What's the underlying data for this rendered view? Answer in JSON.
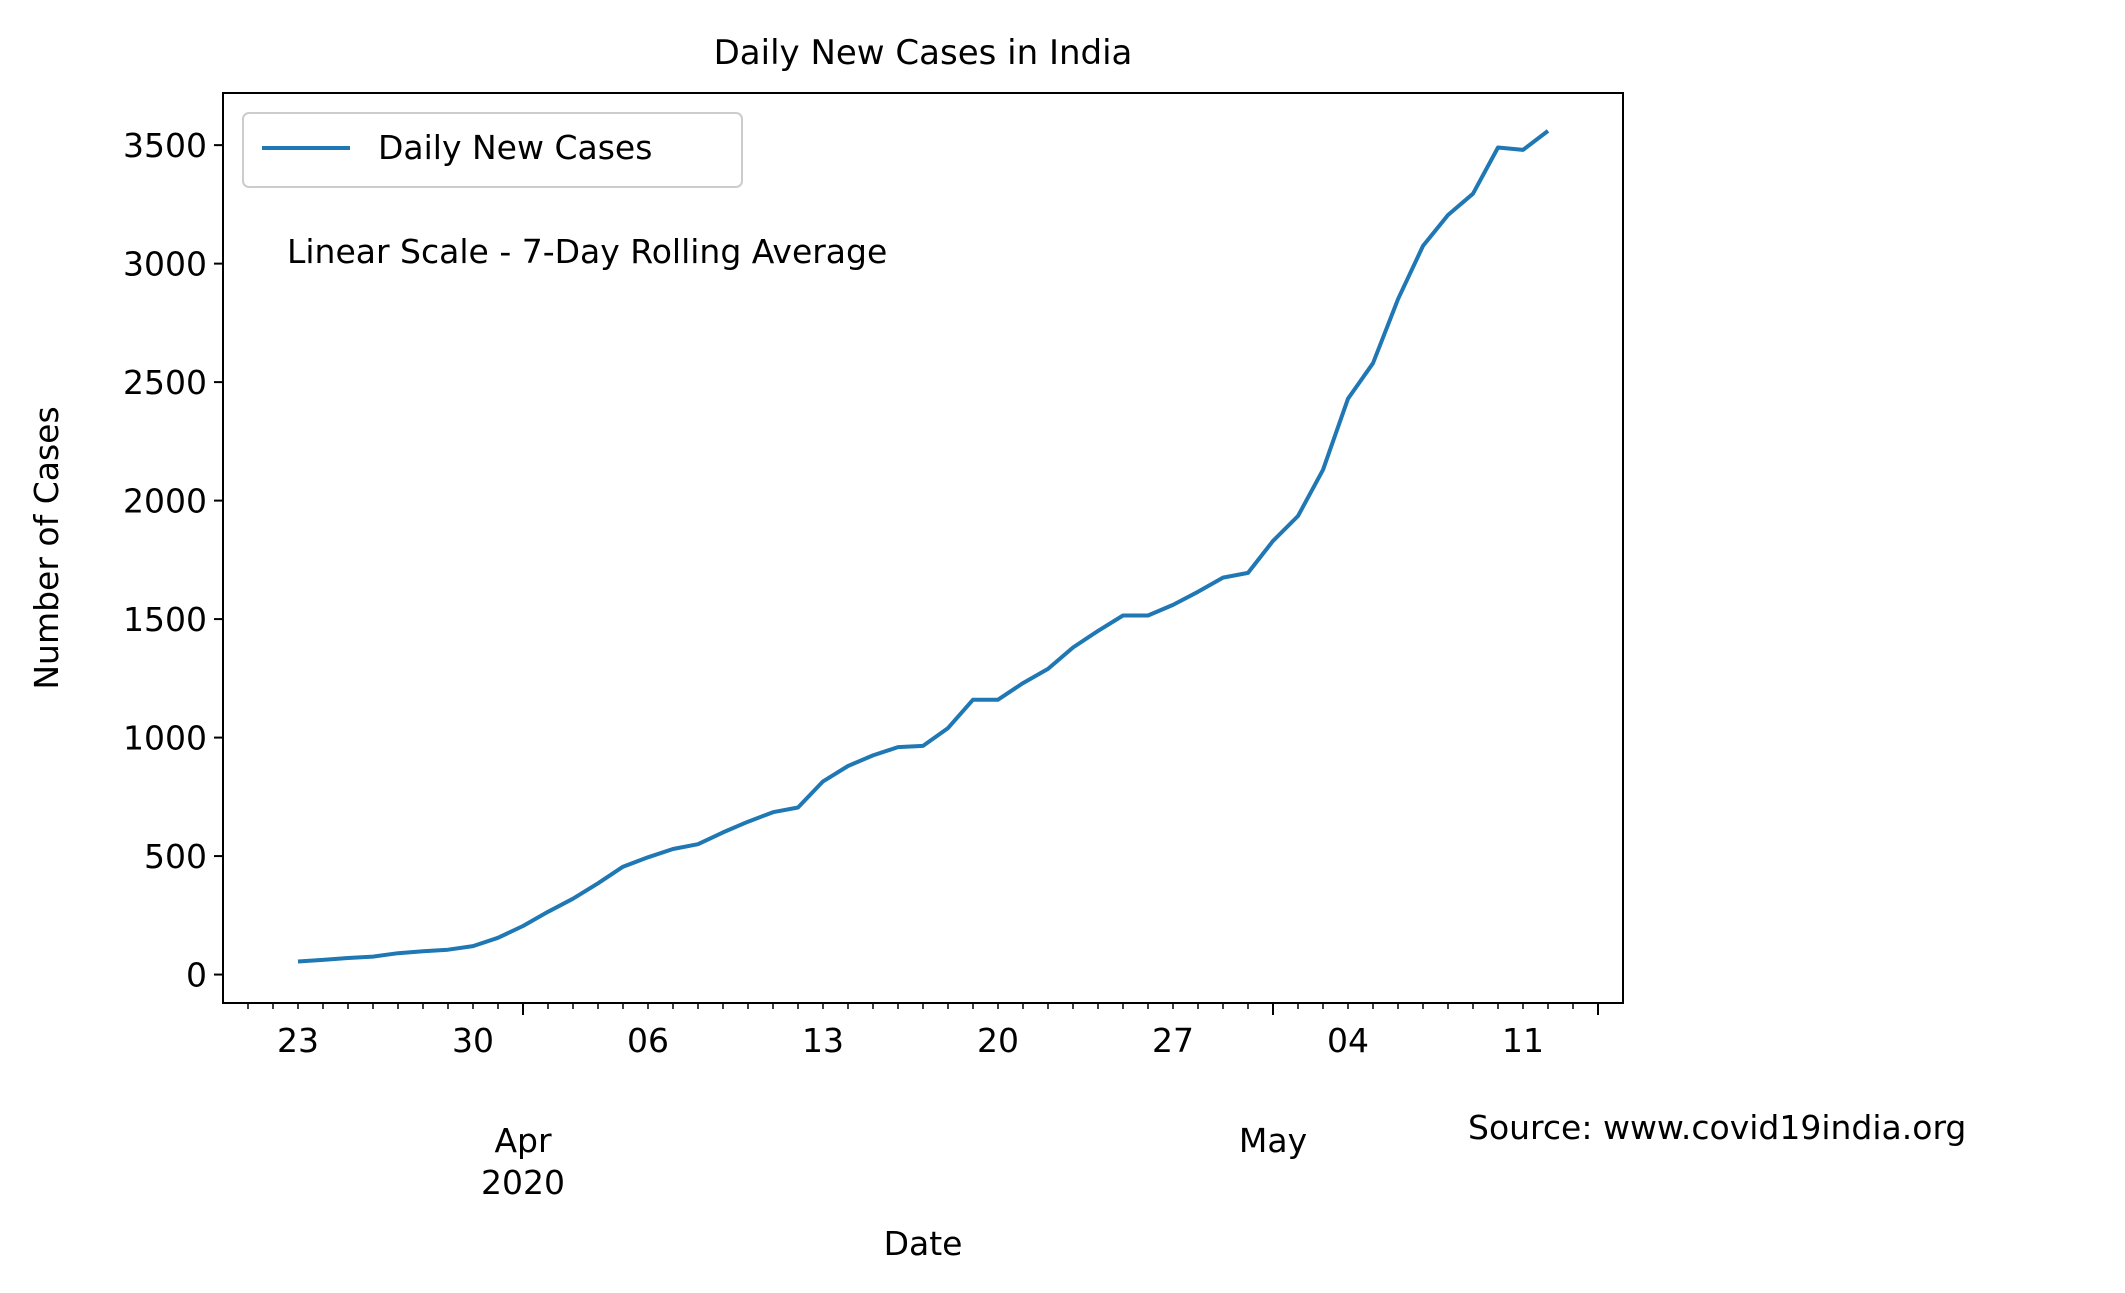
{
  "chart_data": {
    "type": "line",
    "title": "Daily New Cases in India",
    "xlabel": "Date",
    "ylabel": "Number of Cases",
    "annotation": "Linear Scale - 7-Day Rolling Average",
    "source": "Source: www.covid19india.org",
    "legend": {
      "placement": "top-left",
      "label": "Daily New Cases"
    },
    "colors": {
      "line": "#1f77b4",
      "axes": "#000000",
      "legend_border": "#cccccc"
    },
    "ylim": [
      -120,
      3720
    ],
    "xlim": [
      "2020-03-20",
      "2020-05-15"
    ],
    "y_ticks": [
      0,
      500,
      1000,
      1500,
      2000,
      2500,
      3000,
      3500
    ],
    "x_tick_labels": [
      {
        "date": "2020-03-23",
        "label": "23"
      },
      {
        "date": "2020-03-30",
        "label": "30"
      },
      {
        "date": "2020-04-06",
        "label": "06"
      },
      {
        "date": "2020-04-13",
        "label": "13"
      },
      {
        "date": "2020-04-20",
        "label": "20"
      },
      {
        "date": "2020-04-27",
        "label": "27"
      },
      {
        "date": "2020-05-04",
        "label": "04"
      },
      {
        "date": "2020-05-11",
        "label": "11"
      }
    ],
    "month_labels": [
      {
        "date": "2020-04-01",
        "label": "Apr",
        "year": "2020"
      },
      {
        "date": "2020-05-01",
        "label": "May",
        "year": ""
      }
    ],
    "series": [
      {
        "name": "Daily New Cases",
        "x": [
          "2020-03-23",
          "2020-03-24",
          "2020-03-25",
          "2020-03-26",
          "2020-03-27",
          "2020-03-28",
          "2020-03-29",
          "2020-03-30",
          "2020-03-31",
          "2020-04-01",
          "2020-04-02",
          "2020-04-03",
          "2020-04-04",
          "2020-04-05",
          "2020-04-06",
          "2020-04-07",
          "2020-04-08",
          "2020-04-09",
          "2020-04-10",
          "2020-04-11",
          "2020-04-12",
          "2020-04-13",
          "2020-04-14",
          "2020-04-15",
          "2020-04-16",
          "2020-04-17",
          "2020-04-18",
          "2020-04-19",
          "2020-04-20",
          "2020-04-21",
          "2020-04-22",
          "2020-04-23",
          "2020-04-24",
          "2020-04-25",
          "2020-04-26",
          "2020-04-27",
          "2020-04-28",
          "2020-04-29",
          "2020-04-30",
          "2020-05-01",
          "2020-05-02",
          "2020-05-03",
          "2020-05-04",
          "2020-05-05",
          "2020-05-06",
          "2020-05-07",
          "2020-05-08",
          "2020-05-09",
          "2020-05-10",
          "2020-05-11",
          "2020-05-12"
        ],
        "y": [
          55,
          62,
          70,
          76,
          90,
          98,
          105,
          120,
          155,
          205,
          265,
          320,
          385,
          455,
          495,
          530,
          550,
          600,
          645,
          685,
          705,
          815,
          880,
          925,
          960,
          965,
          1040,
          1160,
          1160,
          1230,
          1290,
          1380,
          1450,
          1515,
          1515,
          1560,
          1615,
          1675,
          1695,
          1830,
          1935,
          2130,
          2430,
          2580,
          2850,
          3075,
          3205,
          3295,
          3490,
          3480,
          3560
        ]
      }
    ]
  }
}
